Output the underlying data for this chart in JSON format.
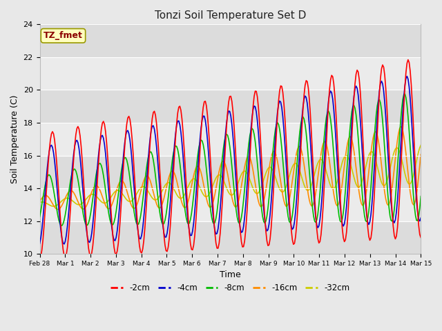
{
  "title": "Tonzi Soil Temperature Set D",
  "xlabel": "Time",
  "ylabel": "Soil Temperature (C)",
  "ylim": [
    10,
    24
  ],
  "annotation_text": "TZ_fmet",
  "annotation_color": "#8B0000",
  "annotation_bg": "#FFFFC0",
  "annotation_border": "#999900",
  "figure_bg": "#E8E8E8",
  "plot_bg_light": "#EBEBEB",
  "plot_bg_dark": "#DCDCDC",
  "legend_labels": [
    "-2cm",
    "-4cm",
    "-8cm",
    "-16cm",
    "-32cm"
  ],
  "legend_colors": [
    "#FF0000",
    "#0000CD",
    "#00BB00",
    "#FF8C00",
    "#CCCC00"
  ],
  "xtick_labels": [
    "Feb 28",
    "Mar 1",
    "Mar 2",
    "Mar 3",
    "Mar 4",
    "Mar 5",
    "Mar 6",
    "Mar 7",
    "Mar 8",
    "Mar 9",
    "Mar 10",
    "Mar 11",
    "Mar 12",
    "Mar 13",
    "Mar 14",
    "Mar 15"
  ],
  "ytick_values": [
    10,
    12,
    14,
    16,
    18,
    20,
    22,
    24
  ],
  "grid_color": "#FFFFFF",
  "line_width": 1.2,
  "n_days": 15,
  "pts_per_day": 24
}
